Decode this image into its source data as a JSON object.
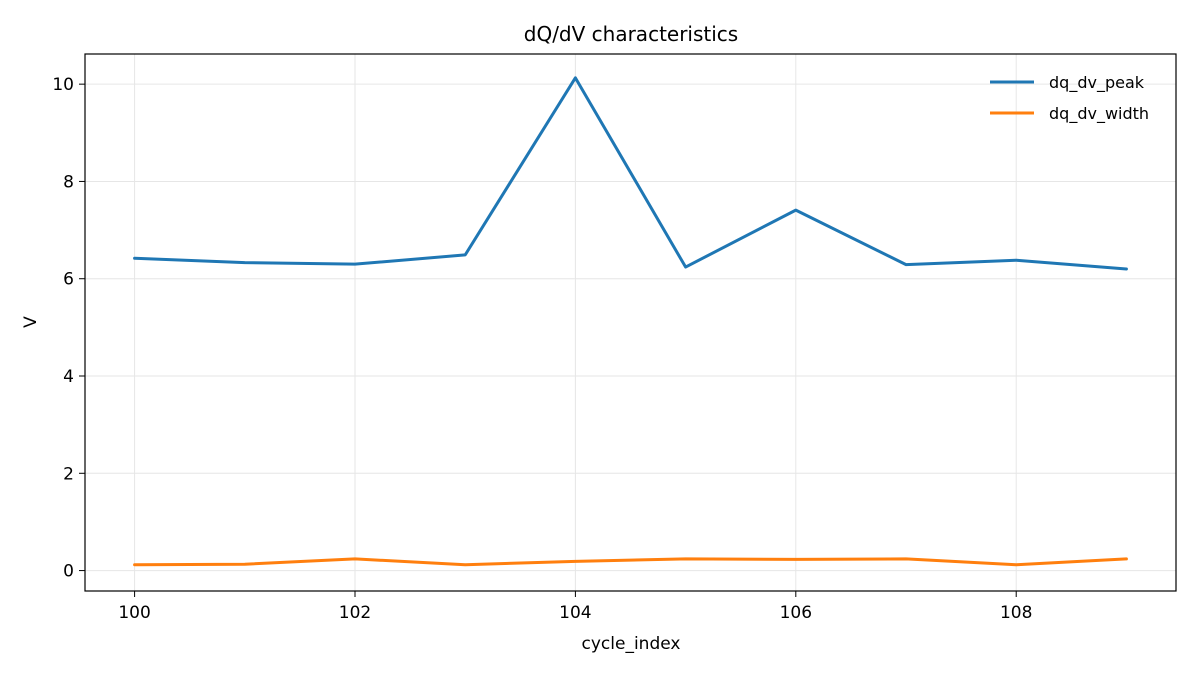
{
  "chart_data": {
    "type": "line",
    "title": "dQ/dV characteristics",
    "xlabel": "cycle_index",
    "ylabel": "V",
    "x": [
      100,
      101,
      102,
      103,
      104,
      105,
      106,
      107,
      108,
      109
    ],
    "xlim": [
      99.55,
      109.45
    ],
    "ylim": [
      -0.42,
      10.62
    ],
    "xticks": [
      100,
      102,
      104,
      106,
      108
    ],
    "yticks": [
      0,
      2,
      4,
      6,
      8,
      10
    ],
    "grid": true,
    "legend_position": "top-right",
    "series": [
      {
        "name": "dq_dv_peak",
        "color": "#1f77b4",
        "values": [
          6.42,
          6.33,
          6.3,
          6.49,
          10.13,
          6.24,
          7.41,
          6.29,
          6.38,
          6.2
        ]
      },
      {
        "name": "dq_dv_width",
        "color": "#ff7f0e",
        "values": [
          0.12,
          0.13,
          0.24,
          0.12,
          0.19,
          0.24,
          0.23,
          0.24,
          0.12,
          0.24
        ]
      }
    ]
  }
}
